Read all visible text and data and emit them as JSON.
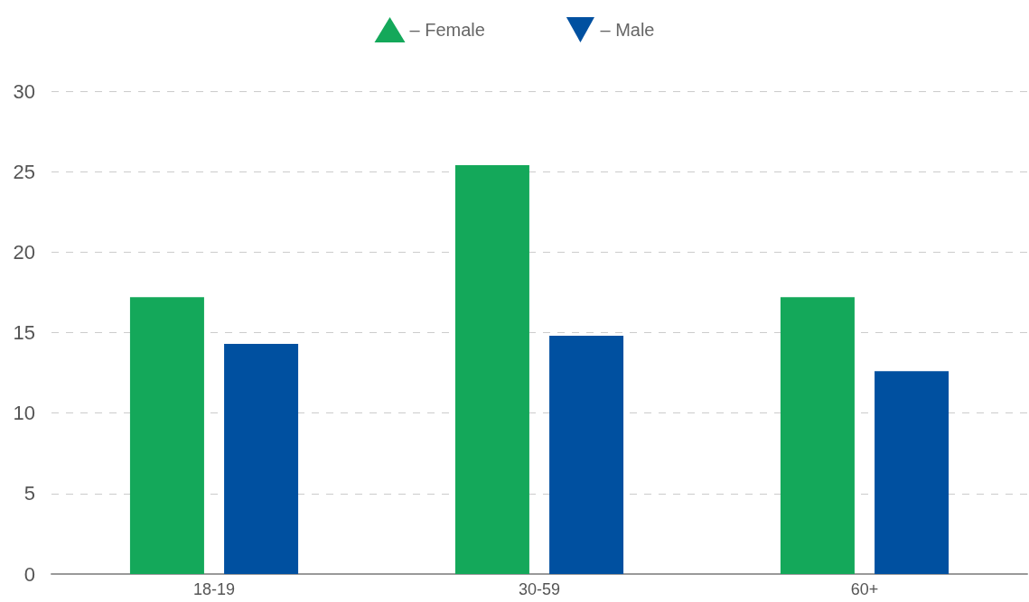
{
  "chart_data": {
    "type": "bar",
    "categories": [
      "18-19",
      "30-59",
      "60+"
    ],
    "series": [
      {
        "name": "– Female",
        "color": "#14a85a",
        "values": [
          17.2,
          25.4,
          17.2
        ]
      },
      {
        "name": "– Male",
        "color": "#0050a0",
        "values": [
          14.3,
          14.8,
          12.6
        ]
      }
    ],
    "ylim": [
      0,
      30
    ],
    "yticks": [
      0,
      5,
      10,
      15,
      20,
      25,
      30
    ],
    "grid": "y",
    "legend": "top"
  }
}
